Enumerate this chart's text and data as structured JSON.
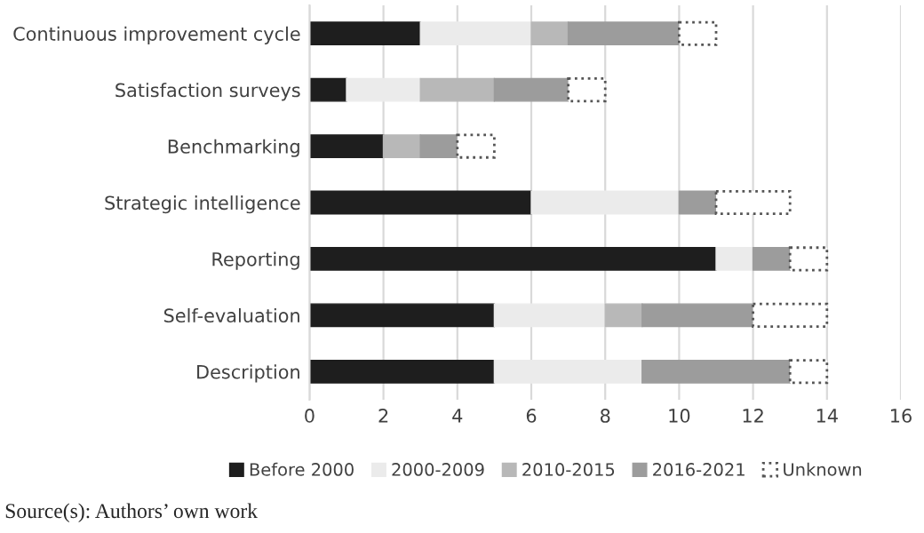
{
  "chart_data": {
    "type": "bar",
    "orientation": "horizontal",
    "stacked": true,
    "categories": [
      "Continuous improvement cycle",
      "Satisfaction surveys",
      "Benchmarking",
      "Strategic intelligence",
      "Reporting",
      "Self-evaluation",
      "Description"
    ],
    "series": [
      {
        "name": "Before 2000",
        "color": "#1e1e1e",
        "values": [
          3,
          1,
          2,
          6,
          11,
          5,
          5
        ]
      },
      {
        "name": "2000-2009",
        "color": "#ebebeb",
        "values": [
          3,
          2,
          0,
          4,
          1,
          3,
          4
        ]
      },
      {
        "name": "2010-2015",
        "color": "#b8b8b8",
        "values": [
          1,
          2,
          1,
          0,
          0,
          1,
          0
        ]
      },
      {
        "name": "2016-2021",
        "color": "#9c9c9c",
        "values": [
          3,
          2,
          1,
          1,
          1,
          3,
          4
        ]
      },
      {
        "name": "Unknown",
        "color": "#ffffff",
        "line_style": "dotted",
        "values": [
          1,
          1,
          1,
          2,
          1,
          2,
          1
        ]
      }
    ],
    "xlim": [
      0,
      16
    ],
    "xticks": [
      0,
      2,
      4,
      6,
      8,
      10,
      12,
      14,
      16
    ],
    "grid": "x",
    "legend": "bottom",
    "annotations": [
      "Source(s): Authors’ own work"
    ]
  }
}
